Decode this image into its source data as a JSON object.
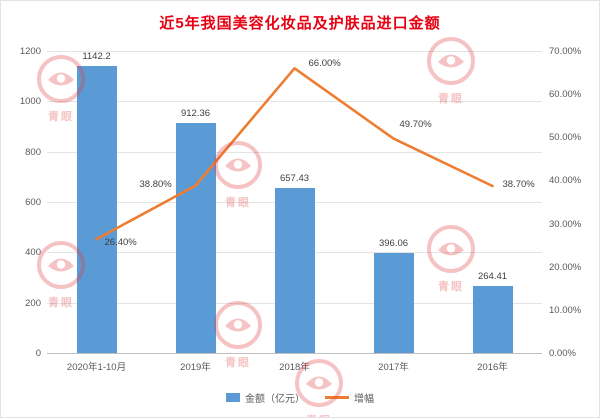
{
  "title": "近5年我国美容化妆品及护肤品进口金额",
  "watermark": {
    "text": "青眼"
  },
  "legend": {
    "bar_label": "金额（亿元）",
    "line_label": "增幅"
  },
  "chart_data": {
    "type": "bar+line",
    "title": "近5年我国美容化妆品及护肤品进口金额",
    "categories": [
      "2020年1-10月",
      "2019年",
      "2018年",
      "2017年",
      "2016年"
    ],
    "series": [
      {
        "name": "金额（亿元）",
        "type": "bar",
        "axis": "left",
        "color": "#5B9BD5",
        "values": [
          1142.2,
          912.36,
          657.43,
          396.06,
          264.41
        ],
        "labels": [
          "1142.2",
          "912.36",
          "657.43",
          "396.06",
          "264.41"
        ]
      },
      {
        "name": "增幅",
        "type": "line",
        "axis": "right",
        "color": "#ED7D31",
        "values": [
          26.4,
          38.8,
          66.0,
          49.7,
          38.7
        ],
        "labels": [
          "26.40%",
          "38.80%",
          "66.00%",
          "49.70%",
          "38.70%"
        ]
      }
    ],
    "left_axis": {
      "min": 0,
      "max": 1200,
      "step": 200,
      "ticks": [
        "0",
        "200",
        "400",
        "600",
        "800",
        "1000",
        "1200"
      ]
    },
    "right_axis": {
      "min": 0,
      "max": 70,
      "step": 10,
      "ticks": [
        "0.00%",
        "10.00%",
        "20.00%",
        "30.00%",
        "40.00%",
        "50.00%",
        "60.00%",
        "70.00%"
      ]
    },
    "grid": true,
    "legend_position": "bottom"
  }
}
